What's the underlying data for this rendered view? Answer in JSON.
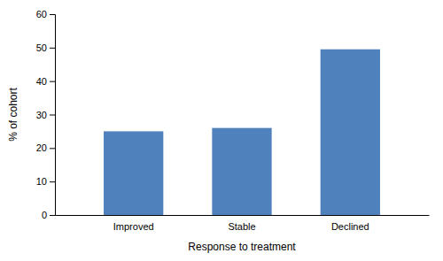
{
  "chart_data": {
    "type": "bar",
    "categories": [
      "Improved",
      "Stable",
      "Declined"
    ],
    "values": [
      25,
      26,
      49.5
    ],
    "color": "#4F81BD",
    "xlabel": "Response to treatment",
    "ylabel": "% of cohort",
    "ylim": [
      0,
      60
    ],
    "yticks": [
      0,
      10,
      20,
      30,
      40,
      50,
      60
    ],
    "grid": false
  }
}
